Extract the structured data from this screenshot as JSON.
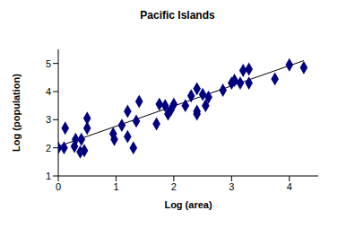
{
  "chart_data": {
    "type": "scatter",
    "title": "Pacific Islands",
    "x_label": "Log (area)",
    "y_label": "Log (population)",
    "x": [
      0,
      0.1,
      0.12,
      0.28,
      0.3,
      0.38,
      0.4,
      0.45,
      0.5,
      0.5,
      0.95,
      0.97,
      1.1,
      1.2,
      1.2,
      1.3,
      1.35,
      1.4,
      1.7,
      1.75,
      1.85,
      1.9,
      1.95,
      2.0,
      2.2,
      2.3,
      2.4,
      2.4,
      2.4,
      2.5,
      2.55,
      2.6,
      2.85,
      3.0,
      3.05,
      3.15,
      3.2,
      3.3,
      3.3,
      3.75,
      4.0,
      4.25
    ],
    "values": [
      2.0,
      2.0,
      2.7,
      2.05,
      2.3,
      1.85,
      2.3,
      1.9,
      3.05,
      2.7,
      2.5,
      2.3,
      2.8,
      2.4,
      3.3,
      2.0,
      2.95,
      3.65,
      2.85,
      3.55,
      3.5,
      3.2,
      3.35,
      3.55,
      3.5,
      3.85,
      3.3,
      3.2,
      4.1,
      3.9,
      3.5,
      3.8,
      4.05,
      4.3,
      4.4,
      4.3,
      4.75,
      4.8,
      4.3,
      4.45,
      4.95,
      4.85
    ],
    "color": "#000080",
    "marker": "diamond",
    "trend_line": {
      "x": [
        0,
        4.25
      ],
      "values": [
        2.05,
        5.1
      ],
      "color": "#000000"
    },
    "xlim": [
      0,
      4.5
    ],
    "xticks": [
      0,
      1,
      2,
      3,
      4
    ],
    "ylim": [
      1,
      5.5
    ],
    "yticks": [
      1,
      2,
      3,
      4,
      5
    ],
    "grid": false
  }
}
